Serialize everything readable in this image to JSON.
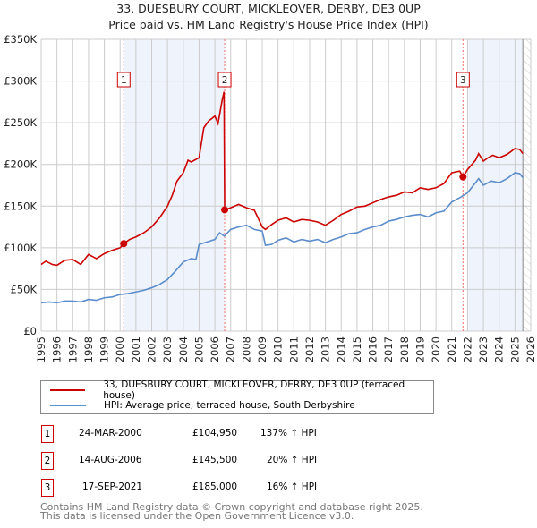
{
  "title": "33, DUESBURY COURT, MICKLEOVER, DERBY, DE3 0UP",
  "subtitle": "Price paid vs. HM Land Registry's House Price Index (HPI)",
  "chart_data": {
    "type": "line",
    "xlim": [
      1995,
      2026
    ],
    "ylim": [
      0,
      350000
    ],
    "x_ticks": [
      "1995",
      "1996",
      "1997",
      "1998",
      "1999",
      "2000",
      "2001",
      "2002",
      "2003",
      "2004",
      "2005",
      "2006",
      "2007",
      "2008",
      "2009",
      "2010",
      "2011",
      "2012",
      "2013",
      "2014",
      "2015",
      "2016",
      "2017",
      "2018",
      "2019",
      "2020",
      "2021",
      "2022",
      "2023",
      "2024",
      "2025",
      "2026"
    ],
    "y_ticks": [
      {
        "v": 0,
        "label": "£0"
      },
      {
        "v": 50000,
        "label": "£50K"
      },
      {
        "v": 100000,
        "label": "£100K"
      },
      {
        "v": 150000,
        "label": "£150K"
      },
      {
        "v": 200000,
        "label": "£200K"
      },
      {
        "v": 250000,
        "label": "£250K"
      },
      {
        "v": 300000,
        "label": "£300K"
      },
      {
        "v": 350000,
        "label": "£350K"
      }
    ],
    "grid": true,
    "series": [
      {
        "name": "33, DUESBURY COURT, MICKLEOVER, DERBY, DE3 0UP (terraced house)",
        "color": "#cc0000",
        "x": [
          1995,
          1995.3,
          1995.7,
          1996,
          1996.5,
          1997,
          1997.5,
          1998,
          1998.5,
          1999,
          1999.5,
          2000,
          2000.23,
          2000.6,
          2001,
          2001.5,
          2002,
          2002.5,
          2003,
          2003.3,
          2003.6,
          2004,
          2004.3,
          2004.5,
          2005,
          2005.3,
          2005.6,
          2006,
          2006.2,
          2006.45,
          2006.58,
          2006.62,
          2007,
          2007.5,
          2008,
          2008.5,
          2009,
          2009.2,
          2009.6,
          2010,
          2010.5,
          2011,
          2011.5,
          2012,
          2012.5,
          2013,
          2013.5,
          2014,
          2014.5,
          2015,
          2015.5,
          2016,
          2016.5,
          2017,
          2017.5,
          2018,
          2018.5,
          2019,
          2019.5,
          2020,
          2020.5,
          2021,
          2021.5,
          2021.71,
          2022,
          2022.5,
          2022.7,
          2023,
          2023.3,
          2023.6,
          2024,
          2024.5,
          2025,
          2025.3,
          2025.5
        ],
        "y": [
          80000,
          84000,
          80000,
          79000,
          85000,
          86000,
          80000,
          92000,
          87000,
          93000,
          97000,
          100000,
          104950,
          110000,
          113000,
          118000,
          125000,
          136000,
          150000,
          163000,
          180000,
          190000,
          205000,
          203000,
          208000,
          244000,
          252000,
          258000,
          249000,
          276000,
          287000,
          145500,
          148000,
          152000,
          148000,
          145000,
          125000,
          122000,
          128000,
          133000,
          136000,
          131000,
          134000,
          133000,
          131000,
          127000,
          133000,
          140000,
          144000,
          149000,
          150000,
          154000,
          158000,
          161000,
          163000,
          167000,
          166000,
          172000,
          170000,
          172000,
          177000,
          190000,
          192000,
          185000,
          194000,
          205000,
          213000,
          204000,
          208000,
          211000,
          208000,
          212000,
          219000,
          218000,
          213000
        ]
      },
      {
        "name": "HPI: Average price, terraced house, South Derbyshire",
        "color": "#5b8ccc",
        "x": [
          1995,
          1995.5,
          1996,
          1996.5,
          1997,
          1997.5,
          1998,
          1998.5,
          1999,
          1999.5,
          2000,
          2000.5,
          2001,
          2001.5,
          2002,
          2002.5,
          2003,
          2003.5,
          2004,
          2004.5,
          2004.8,
          2005,
          2005.5,
          2006,
          2006.3,
          2006.6,
          2007,
          2007.5,
          2008,
          2008.5,
          2009,
          2009.2,
          2009.6,
          2010,
          2010.5,
          2011,
          2011.5,
          2012,
          2012.5,
          2013,
          2013.5,
          2014,
          2014.5,
          2015,
          2015.5,
          2016,
          2016.5,
          2017,
          2017.5,
          2018,
          2018.5,
          2019,
          2019.5,
          2020,
          2020.5,
          2021,
          2021.5,
          2022,
          2022.5,
          2022.7,
          2023,
          2023.5,
          2024,
          2024.5,
          2025,
          2025.3,
          2025.5
        ],
        "y": [
          34000,
          35000,
          34000,
          36000,
          36000,
          35000,
          38000,
          37000,
          40000,
          41000,
          44000,
          45000,
          47000,
          49000,
          52000,
          56000,
          62000,
          72000,
          83000,
          87000,
          86000,
          104000,
          107000,
          110000,
          118000,
          114000,
          122000,
          125000,
          127000,
          122000,
          120000,
          103000,
          104000,
          109000,
          112000,
          107000,
          110000,
          108000,
          110000,
          106000,
          110000,
          113000,
          117000,
          118000,
          122000,
          125000,
          127000,
          132000,
          134000,
          137000,
          139000,
          140000,
          137000,
          142000,
          144000,
          155000,
          160000,
          166000,
          178000,
          183000,
          175000,
          180000,
          178000,
          183000,
          190000,
          189000,
          184000
        ]
      }
    ],
    "sales": [
      {
        "label": "1",
        "x": 2000.23,
        "y": 104950
      },
      {
        "label": "2",
        "x": 2006.62,
        "y": 145500
      },
      {
        "label": "3",
        "x": 2021.71,
        "y": 185000
      }
    ],
    "shaded_ranges": [
      [
        2000.23,
        2006.62
      ],
      [
        2022.05,
        2025.5
      ]
    ],
    "hatched_range": [
      2025.5,
      2026
    ]
  },
  "legend": [
    "33, DUESBURY COURT, MICKLEOVER, DERBY, DE3 0UP (terraced house)",
    "HPI: Average price, terraced house, South Derbyshire"
  ],
  "transactions": [
    {
      "num": "1",
      "date": "24-MAR-2000",
      "price": "£104,950",
      "hpi": "137% ↑ HPI"
    },
    {
      "num": "2",
      "date": "14-AUG-2006",
      "price": "£145,500",
      "hpi": "20% ↑ HPI"
    },
    {
      "num": "3",
      "date": "17-SEP-2021",
      "price": "£185,000",
      "hpi": "16% ↑ HPI"
    }
  ],
  "footer": [
    "Contains HM Land Registry data © Crown copyright and database right 2025.",
    "This data is licensed under the Open Government Licence v3.0."
  ]
}
